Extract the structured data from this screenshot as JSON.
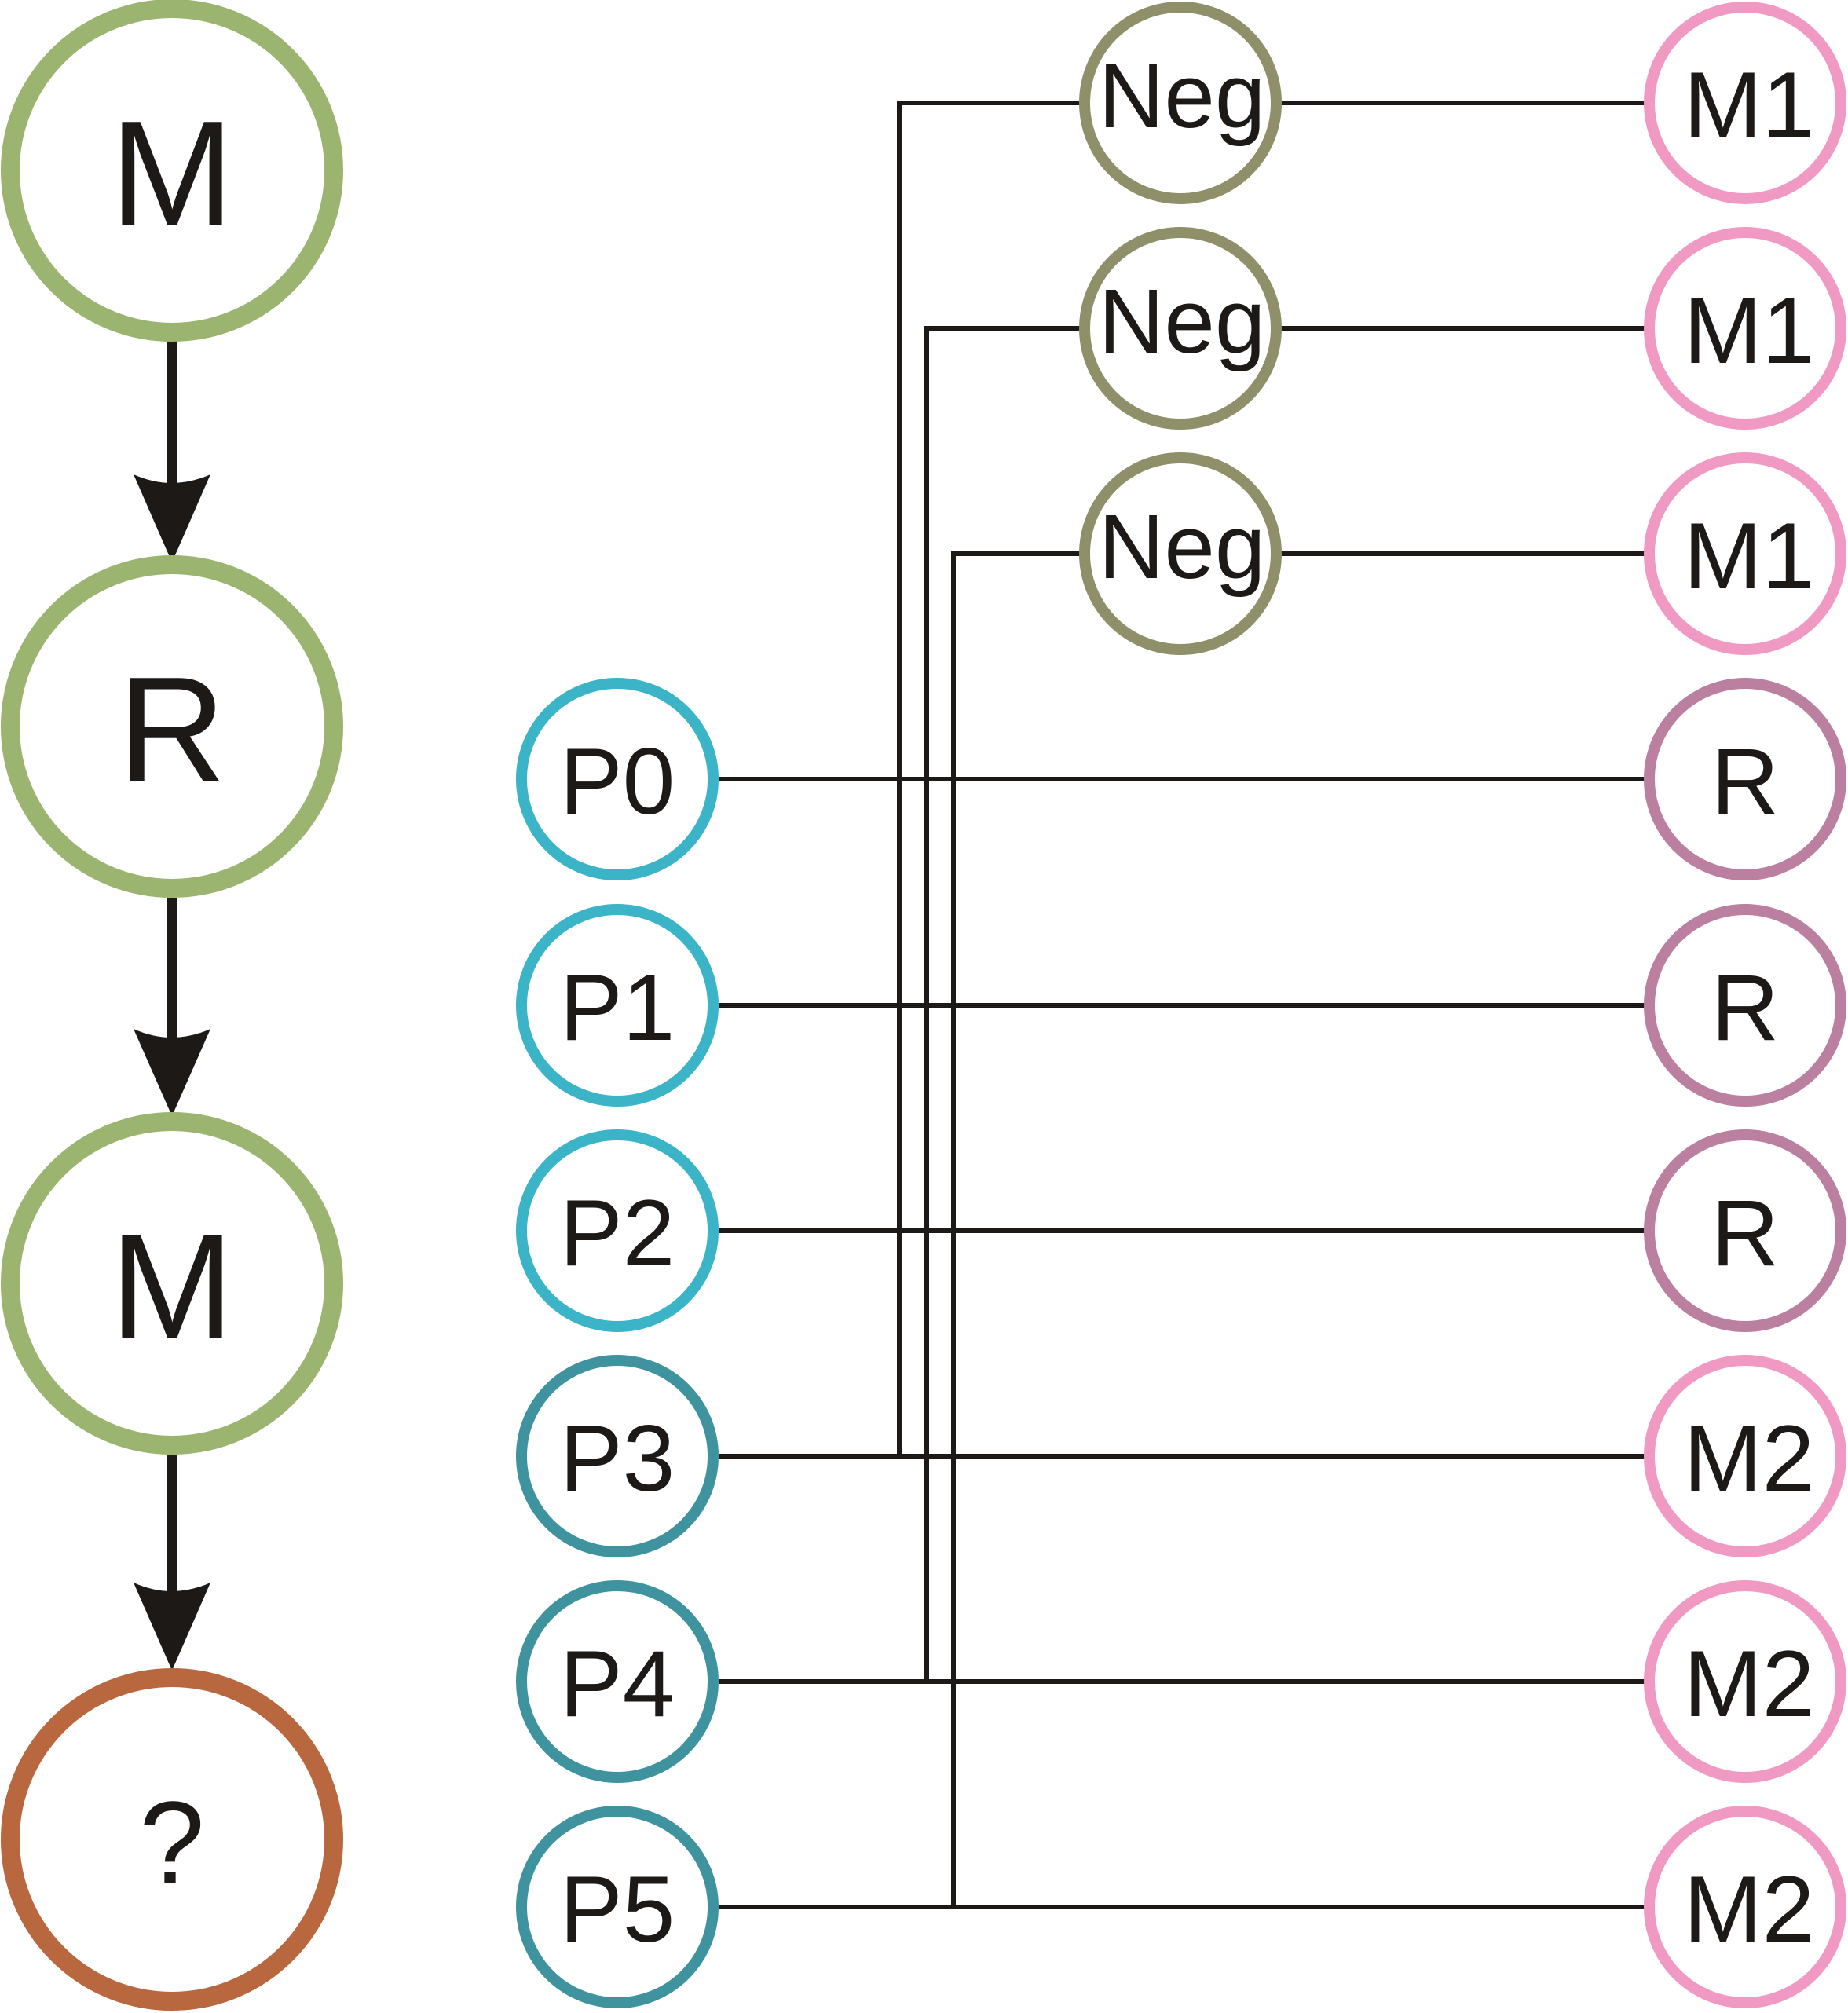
{
  "flow": {
    "nodes": [
      {
        "label": "M",
        "color": "#9bb46f"
      },
      {
        "label": "R",
        "color": "#9bb46f"
      },
      {
        "label": "M",
        "color": "#9bb46f"
      },
      {
        "label": "?",
        "color": "#b8673f"
      }
    ]
  },
  "inputs": [
    {
      "label": "P0",
      "color": "#3cb4c8"
    },
    {
      "label": "P1",
      "color": "#3cb4c8"
    },
    {
      "label": "P2",
      "color": "#3cb4c8"
    },
    {
      "label": "P3",
      "color": "#3f939e"
    },
    {
      "label": "P4",
      "color": "#3f939e"
    },
    {
      "label": "P5",
      "color": "#3f939e"
    }
  ],
  "negations": [
    {
      "label": "Neg",
      "color": "#8f8f69"
    },
    {
      "label": "Neg",
      "color": "#8f8f69"
    },
    {
      "label": "Neg",
      "color": "#8f8f69"
    }
  ],
  "outputs": [
    {
      "label": "M1",
      "color": "#f09ac3"
    },
    {
      "label": "M1",
      "color": "#f09ac3"
    },
    {
      "label": "M1",
      "color": "#f09ac3"
    },
    {
      "label": "R",
      "color": "#bb7fa0"
    },
    {
      "label": "R",
      "color": "#bb7fa0"
    },
    {
      "label": "R",
      "color": "#bb7fa0"
    },
    {
      "label": "M2",
      "color": "#f09ac3"
    },
    {
      "label": "M2",
      "color": "#f09ac3"
    },
    {
      "label": "M2",
      "color": "#f09ac3"
    }
  ]
}
